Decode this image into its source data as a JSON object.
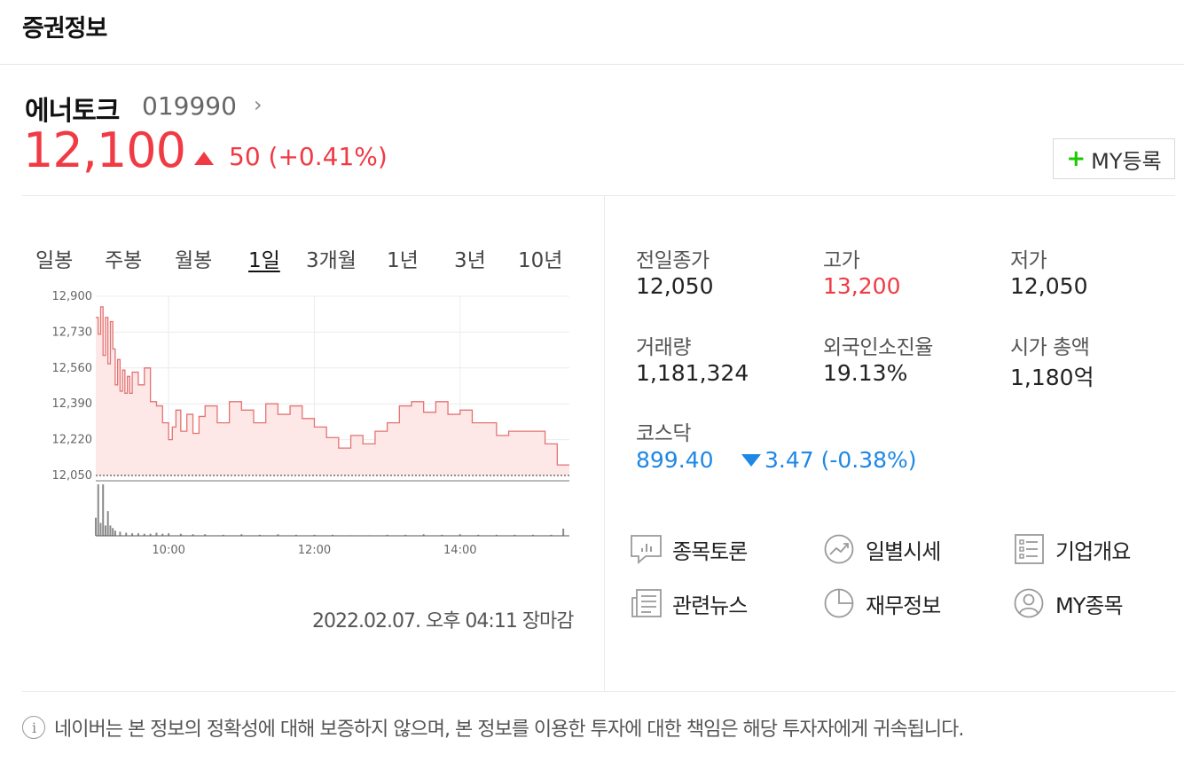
{
  "header": {
    "title": "증권정보"
  },
  "stock": {
    "name": "에너토크",
    "code": "019990",
    "price": "12,100",
    "change": "50 (+0.41%)",
    "my_button_label": "MY등록"
  },
  "period_tabs": [
    "일봉",
    "주봉",
    "월봉",
    "1일",
    "3개월",
    "1년",
    "3년",
    "10년"
  ],
  "active_tab": "1일",
  "chart_data": {
    "type": "area",
    "ylim": [
      12050,
      12900
    ],
    "y_ticks": [
      "12,900",
      "12,730",
      "12,560",
      "12,390",
      "12,220",
      "12,050"
    ],
    "x_ticks": [
      "10:00",
      "12:00",
      "14:00"
    ],
    "x_range": [
      "09:00",
      "15:30"
    ],
    "price_series": [
      [
        "09:00",
        12800
      ],
      [
        "09:02",
        12720
      ],
      [
        "09:04",
        12850
      ],
      [
        "09:06",
        12620
      ],
      [
        "09:08",
        12800
      ],
      [
        "09:10",
        12580
      ],
      [
        "09:12",
        12780
      ],
      [
        "09:14",
        12650
      ],
      [
        "09:16",
        12480
      ],
      [
        "09:18",
        12600
      ],
      [
        "09:20",
        12450
      ],
      [
        "09:22",
        12550
      ],
      [
        "09:24",
        12440
      ],
      [
        "09:26",
        12520
      ],
      [
        "09:28",
        12440
      ],
      [
        "09:30",
        12540
      ],
      [
        "09:35",
        12480
      ],
      [
        "09:40",
        12560
      ],
      [
        "09:45",
        12400
      ],
      [
        "09:50",
        12380
      ],
      [
        "09:55",
        12300
      ],
      [
        "10:00",
        12220
      ],
      [
        "10:03",
        12280
      ],
      [
        "10:06",
        12360
      ],
      [
        "10:10",
        12260
      ],
      [
        "10:15",
        12340
      ],
      [
        "10:20",
        12250
      ],
      [
        "10:25",
        12330
      ],
      [
        "10:30",
        12380
      ],
      [
        "10:40",
        12300
      ],
      [
        "10:50",
        12400
      ],
      [
        "11:00",
        12360
      ],
      [
        "11:10",
        12300
      ],
      [
        "11:20",
        12390
      ],
      [
        "11:30",
        12340
      ],
      [
        "11:40",
        12380
      ],
      [
        "11:50",
        12320
      ],
      [
        "12:00",
        12280
      ],
      [
        "12:10",
        12230
      ],
      [
        "12:20",
        12180
      ],
      [
        "12:30",
        12240
      ],
      [
        "12:40",
        12200
      ],
      [
        "12:50",
        12260
      ],
      [
        "13:00",
        12300
      ],
      [
        "13:10",
        12380
      ],
      [
        "13:20",
        12400
      ],
      [
        "13:30",
        12350
      ],
      [
        "13:40",
        12400
      ],
      [
        "13:50",
        12340
      ],
      [
        "14:00",
        12360
      ],
      [
        "14:10",
        12300
      ],
      [
        "14:20",
        12300
      ],
      [
        "14:30",
        12240
      ],
      [
        "14:40",
        12260
      ],
      [
        "14:50",
        12260
      ],
      [
        "15:00",
        12260
      ],
      [
        "15:10",
        12200
      ],
      [
        "15:20",
        12100
      ],
      [
        "15:30",
        12100
      ]
    ],
    "volume_series": [
      [
        "09:00",
        35
      ],
      [
        "09:02",
        100
      ],
      [
        "09:04",
        25
      ],
      [
        "09:06",
        100
      ],
      [
        "09:08",
        20
      ],
      [
        "09:10",
        48
      ],
      [
        "09:12",
        20
      ],
      [
        "09:14",
        15
      ],
      [
        "09:16",
        10
      ],
      [
        "09:20",
        8
      ],
      [
        "09:25",
        6
      ],
      [
        "09:30",
        5
      ],
      [
        "09:35",
        5
      ],
      [
        "09:40",
        4
      ],
      [
        "09:45",
        4
      ],
      [
        "09:50",
        6
      ],
      [
        "09:55",
        4
      ],
      [
        "10:00",
        5
      ],
      [
        "10:10",
        4
      ],
      [
        "10:20",
        3
      ],
      [
        "10:30",
        3
      ],
      [
        "10:45",
        2
      ],
      [
        "11:00",
        3
      ],
      [
        "11:15",
        2
      ],
      [
        "11:30",
        3
      ],
      [
        "11:45",
        2
      ],
      [
        "12:00",
        2
      ],
      [
        "12:15",
        2
      ],
      [
        "12:30",
        1
      ],
      [
        "12:45",
        1
      ],
      [
        "13:00",
        2
      ],
      [
        "13:15",
        2
      ],
      [
        "13:30",
        3
      ],
      [
        "13:45",
        2
      ],
      [
        "14:00",
        3
      ],
      [
        "14:15",
        2
      ],
      [
        "14:30",
        2
      ],
      [
        "14:45",
        2
      ],
      [
        "15:00",
        2
      ],
      [
        "15:15",
        2
      ],
      [
        "15:25",
        14
      ]
    ]
  },
  "chart_time": "2022.02.07. 오후 04:11 장마감",
  "info": {
    "prev_close_label": "전일종가",
    "prev_close": "12,050",
    "high_label": "고가",
    "high": "13,200",
    "low_label": "저가",
    "low": "12,050",
    "volume_label": "거래량",
    "volume": "1,181,324",
    "foreign_label": "외국인소진율",
    "foreign": "19.13%",
    "market_cap_label": "시가 총액",
    "market_cap": "1,180억",
    "kosdaq_label": "코스닥",
    "kosdaq_value": "899.40",
    "kosdaq_change": "3.47 (-0.38%)"
  },
  "links": {
    "discussion": "종목토론",
    "daily_price": "일별시세",
    "company_overview": "기업개요",
    "related_news": "관련뉴스",
    "financials": "재무정보",
    "my_stocks": "MY종목"
  },
  "notice": "네이버는 본 정보의 정확성에 대해 보증하지 않으며, 본 정보를 이용한 투자에 대한 책임은 해당 투자자에게 귀속됩니다.",
  "colors": {
    "up": "#f03a44",
    "down": "#1e88e5",
    "plus": "#1ec800"
  }
}
